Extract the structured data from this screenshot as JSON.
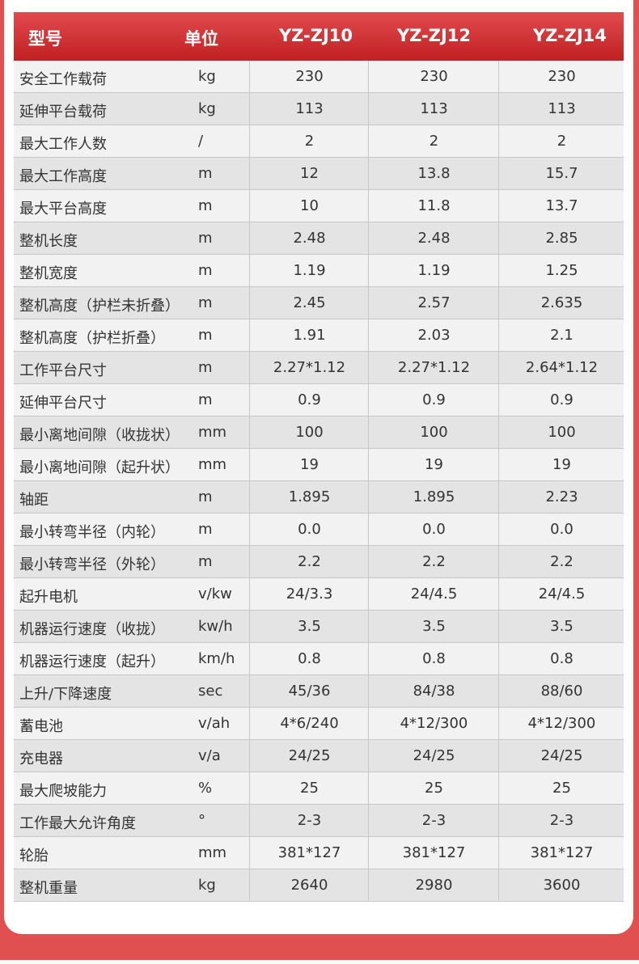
{
  "header": {
    "model": "型号",
    "unit": "单位",
    "models": [
      "YZ-ZJ10",
      "YZ-ZJ12",
      "YZ-ZJ14"
    ]
  },
  "rows": [
    {
      "name": "安全工作载荷",
      "unit": "kg",
      "values": [
        "230",
        "230",
        "230"
      ]
    },
    {
      "name": "延伸平台载荷",
      "unit": "kg",
      "values": [
        "113",
        "113",
        "113"
      ]
    },
    {
      "name": "最大工作人数",
      "unit": "/",
      "values": [
        "2",
        "2",
        "2"
      ]
    },
    {
      "name": "最大工作高度",
      "unit": "m",
      "values": [
        "12",
        "13.8",
        "15.7"
      ]
    },
    {
      "name": "最大平台高度",
      "unit": "m",
      "values": [
        "10",
        "11.8",
        "13.7"
      ]
    },
    {
      "name": "整机长度",
      "unit": "m",
      "values": [
        "2.48",
        "2.48",
        "2.85"
      ]
    },
    {
      "name": "整机宽度",
      "unit": "m",
      "values": [
        "1.19",
        "1.19",
        "1.25"
      ]
    },
    {
      "name": "整机高度（护栏未折叠）",
      "unit": "m",
      "values": [
        "2.45",
        "2.57",
        "2.635"
      ]
    },
    {
      "name": "整机高度（护栏折叠）",
      "unit": "m",
      "values": [
        "1.91",
        "2.03",
        "2.1"
      ]
    },
    {
      "name": "工作平台尺寸",
      "unit": "m",
      "values": [
        "2.27*1.12",
        "2.27*1.12",
        "2.64*1.12"
      ]
    },
    {
      "name": "延伸平台尺寸",
      "unit": "m",
      "values": [
        "0.9",
        "0.9",
        "0.9"
      ]
    },
    {
      "name": "最小离地间隙（收拢状）",
      "unit": "mm",
      "values": [
        "100",
        "100",
        "100"
      ]
    },
    {
      "name": "最小离地间隙（起升状）",
      "unit": "mm",
      "values": [
        "19",
        "19",
        "19"
      ]
    },
    {
      "name": "轴距",
      "unit": "m",
      "values": [
        "1.895",
        "1.895",
        "2.23"
      ]
    },
    {
      "name": "最小转弯半径（内轮）",
      "unit": "m",
      "values": [
        "0.0",
        "0.0",
        "0.0"
      ]
    },
    {
      "name": "最小转弯半径（外轮）",
      "unit": "m",
      "values": [
        "2.2",
        "2.2",
        "2.2"
      ]
    },
    {
      "name": "起升电机",
      "unit": "v/kw",
      "values": [
        "24/3.3",
        "24/4.5",
        "24/4.5"
      ]
    },
    {
      "name": "机器运行速度（收拢）",
      "unit": "kw/h",
      "values": [
        "3.5",
        "3.5",
        "3.5"
      ]
    },
    {
      "name": "机器运行速度（起升）",
      "unit": "km/h",
      "values": [
        "0.8",
        "0.8",
        "0.8"
      ]
    },
    {
      "name": "上升/下降速度",
      "unit": "sec",
      "values": [
        "45/36",
        "84/38",
        "88/60"
      ]
    },
    {
      "name": "蓄电池",
      "unit": "v/ah",
      "values": [
        "4*6/240",
        "4*12/300",
        "4*12/300"
      ]
    },
    {
      "name": "充电器",
      "unit": "v/a",
      "values": [
        "24/25",
        "24/25",
        "24/25"
      ]
    },
    {
      "name": "最大爬坡能力",
      "unit": "%",
      "values": [
        "25",
        "25",
        "25"
      ]
    },
    {
      "name": "工作最大允许角度",
      "unit": "°",
      "values": [
        "2-3",
        "2-3",
        "2-3"
      ]
    },
    {
      "name": "轮胎",
      "unit": "mm",
      "values": [
        "381*127",
        "381*127",
        "381*127"
      ]
    },
    {
      "name": "整机重量",
      "unit": "kg",
      "values": [
        "2640",
        "2980",
        "3600"
      ]
    }
  ]
}
